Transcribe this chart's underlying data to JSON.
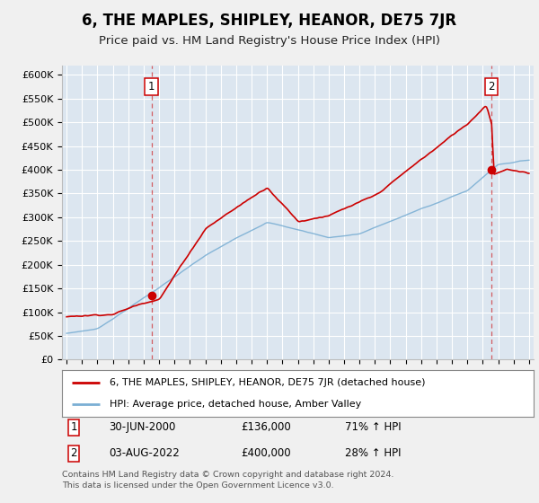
{
  "title": "6, THE MAPLES, SHIPLEY, HEANOR, DE75 7JR",
  "subtitle": "Price paid vs. HM Land Registry's House Price Index (HPI)",
  "ylim": [
    0,
    620000
  ],
  "yticks": [
    0,
    50000,
    100000,
    150000,
    200000,
    250000,
    300000,
    350000,
    400000,
    450000,
    500000,
    550000,
    600000
  ],
  "ytick_labels": [
    "£0",
    "£50K",
    "£100K",
    "£150K",
    "£200K",
    "£250K",
    "£300K",
    "£350K",
    "£400K",
    "£450K",
    "£500K",
    "£550K",
    "£600K"
  ],
  "xlim": [
    1994.7,
    2025.3
  ],
  "title_fontsize": 12,
  "subtitle_fontsize": 9.5,
  "bg_color": "#f0f0f0",
  "plot_bg_color": "#dce6f0",
  "grid_color": "#ffffff",
  "red_color": "#cc0000",
  "blue_color": "#7bafd4",
  "sale1_year": 2000.5,
  "sale1_price": 136000,
  "sale2_year": 2022.58,
  "sale2_price": 400000,
  "legend_line1": "6, THE MAPLES, SHIPLEY, HEANOR, DE75 7JR (detached house)",
  "legend_line2": "HPI: Average price, detached house, Amber Valley",
  "ann1_label": "1",
  "ann1_date": "30-JUN-2000",
  "ann1_price": "£136,000",
  "ann1_hpi": "71% ↑ HPI",
  "ann2_label": "2",
  "ann2_date": "03-AUG-2022",
  "ann2_price": "£400,000",
  "ann2_hpi": "28% ↑ HPI",
  "footer": "Contains HM Land Registry data © Crown copyright and database right 2024.\nThis data is licensed under the Open Government Licence v3.0."
}
